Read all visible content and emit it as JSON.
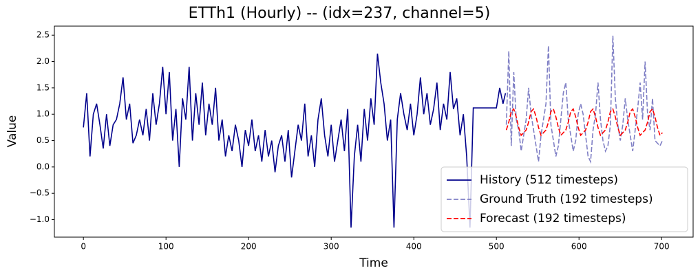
{
  "chart_data": {
    "type": "line",
    "title": "ETTh1 (Hourly) -- (idx=237, channel=5)",
    "x_label": "Time",
    "y_label": "Value",
    "xlim": [
      -35.15,
      738.15
    ],
    "ylim": [
      -1.332,
      2.672
    ],
    "xticks": [
      0,
      100,
      200,
      300,
      400,
      500,
      600,
      700
    ],
    "yticks": [
      {
        "value": -1.0,
        "label": "−1.0"
      },
      {
        "value": -0.5,
        "label": "−0.5"
      },
      {
        "value": 0.0,
        "label": "0.0"
      },
      0.5,
      {
        "value": 1.0,
        "label": "1.0"
      },
      1.5,
      {
        "value": 2.0,
        "label": "2.0"
      },
      2.5
    ],
    "legend": "lower right",
    "series": [
      {
        "name": "History (512 timesteps)",
        "color": "#00008b",
        "dash": "solid",
        "x": [
          0,
          4,
          8,
          12,
          16,
          20,
          24,
          28,
          32,
          36,
          40,
          44,
          48,
          52,
          56,
          60,
          64,
          68,
          72,
          76,
          80,
          84,
          88,
          92,
          96,
          100,
          104,
          108,
          112,
          116,
          120,
          124,
          128,
          132,
          136,
          140,
          144,
          148,
          152,
          156,
          160,
          164,
          168,
          172,
          176,
          180,
          184,
          188,
          192,
          196,
          200,
          204,
          208,
          212,
          216,
          220,
          224,
          228,
          232,
          236,
          240,
          244,
          248,
          252,
          256,
          260,
          264,
          268,
          272,
          276,
          280,
          284,
          288,
          292,
          296,
          300,
          304,
          308,
          312,
          316,
          320,
          324,
          328,
          332,
          336,
          340,
          344,
          348,
          352,
          356,
          360,
          364,
          368,
          372,
          376,
          380,
          384,
          388,
          392,
          396,
          400,
          404,
          408,
          412,
          416,
          420,
          424,
          428,
          432,
          436,
          440,
          444,
          448,
          452,
          456,
          460,
          464,
          468,
          472,
          476,
          480,
          484,
          488,
          492,
          496,
          500,
          504,
          508,
          511
        ],
        "values": [
          0.75,
          1.4,
          0.2,
          1.0,
          1.2,
          0.8,
          0.35,
          1.0,
          0.4,
          0.8,
          0.9,
          1.2,
          1.7,
          0.9,
          1.2,
          0.45,
          0.6,
          0.9,
          0.6,
          1.1,
          0.5,
          1.4,
          0.8,
          1.2,
          1.9,
          1.0,
          1.8,
          0.5,
          1.1,
          0.0,
          1.3,
          0.9,
          1.9,
          0.5,
          1.4,
          0.8,
          1.6,
          0.6,
          1.2,
          0.8,
          1.5,
          0.5,
          0.9,
          0.2,
          0.6,
          0.3,
          0.8,
          0.5,
          0.0,
          0.7,
          0.4,
          0.9,
          0.3,
          0.6,
          0.1,
          0.7,
          0.2,
          0.5,
          -0.1,
          0.4,
          0.6,
          0.1,
          0.7,
          -0.2,
          0.3,
          0.8,
          0.5,
          1.2,
          0.2,
          0.6,
          0.0,
          0.9,
          1.3,
          0.6,
          0.2,
          0.8,
          0.1,
          0.5,
          0.9,
          0.3,
          1.1,
          -1.15,
          0.2,
          0.8,
          0.1,
          1.1,
          0.5,
          1.3,
          0.8,
          2.15,
          1.6,
          1.2,
          0.5,
          0.9,
          -1.15,
          0.9,
          1.4,
          1.0,
          0.7,
          1.2,
          0.6,
          1.0,
          1.7,
          1.0,
          1.4,
          0.8,
          1.1,
          1.6,
          0.7,
          1.2,
          0.9,
          1.8,
          1.1,
          1.3,
          0.6,
          1.0,
          0.2,
          -1.15,
          1.12,
          1.12,
          1.12,
          1.12,
          1.12,
          1.12,
          1.12,
          1.12,
          1.5,
          1.2,
          1.4
        ]
      },
      {
        "name": "Ground Truth (192 timesteps)",
        "color": "#7f7fc5",
        "dash": "dashed",
        "x": [
          512,
          515,
          518,
          521,
          524,
          527,
          530,
          533,
          536,
          539,
          542,
          545,
          548,
          551,
          554,
          557,
          560,
          563,
          566,
          569,
          572,
          575,
          578,
          581,
          584,
          587,
          590,
          593,
          596,
          599,
          602,
          605,
          608,
          611,
          614,
          617,
          620,
          623,
          626,
          629,
          632,
          635,
          638,
          641,
          644,
          647,
          650,
          653,
          656,
          659,
          662,
          665,
          668,
          671,
          674,
          677,
          680,
          683,
          686,
          689,
          692,
          695,
          698,
          701
        ],
        "values": [
          0.8,
          2.2,
          0.4,
          1.8,
          0.9,
          0.7,
          0.3,
          0.6,
          0.9,
          1.5,
          1.0,
          0.7,
          0.4,
          0.1,
          0.6,
          0.9,
          1.2,
          2.3,
          0.8,
          0.5,
          0.2,
          0.4,
          0.9,
          1.4,
          1.6,
          0.9,
          0.6,
          0.3,
          0.5,
          1.0,
          1.2,
          1.0,
          0.6,
          0.2,
          0.1,
          0.7,
          1.0,
          1.6,
          0.9,
          0.5,
          0.3,
          0.4,
          0.8,
          2.49,
          1.3,
          0.8,
          0.5,
          0.8,
          1.3,
          0.9,
          0.6,
          0.3,
          0.7,
          1.1,
          1.6,
          0.9,
          2.0,
          1.0,
          0.7,
          1.3,
          0.5,
          0.45,
          0.4,
          0.5
        ]
      },
      {
        "name": "Forecast (192 timesteps)",
        "color": "#ff0000",
        "dash": "dashed",
        "x": [
          512,
          515,
          518,
          521,
          524,
          527,
          530,
          533,
          536,
          539,
          542,
          545,
          548,
          551,
          554,
          557,
          560,
          563,
          566,
          569,
          572,
          575,
          578,
          581,
          584,
          587,
          590,
          593,
          596,
          599,
          602,
          605,
          608,
          611,
          614,
          617,
          620,
          623,
          626,
          629,
          632,
          635,
          638,
          641,
          644,
          647,
          650,
          653,
          656,
          659,
          662,
          665,
          668,
          671,
          674,
          677,
          680,
          683,
          686,
          689,
          692,
          695,
          698,
          701
        ],
        "values": [
          0.7,
          0.85,
          1.05,
          1.1,
          0.95,
          0.75,
          0.6,
          0.65,
          0.7,
          0.85,
          1.05,
          1.1,
          0.95,
          0.75,
          0.6,
          0.65,
          0.7,
          0.85,
          1.05,
          1.1,
          0.95,
          0.75,
          0.6,
          0.65,
          0.7,
          0.85,
          1.05,
          1.1,
          0.95,
          0.75,
          0.6,
          0.65,
          0.7,
          0.85,
          1.05,
          1.1,
          0.95,
          0.75,
          0.6,
          0.65,
          0.7,
          0.85,
          1.05,
          1.1,
          0.95,
          0.75,
          0.6,
          0.65,
          0.7,
          0.85,
          1.05,
          1.1,
          0.95,
          0.75,
          0.6,
          0.65,
          0.7,
          0.85,
          1.05,
          1.1,
          0.95,
          0.75,
          0.6,
          0.65
        ]
      }
    ]
  }
}
